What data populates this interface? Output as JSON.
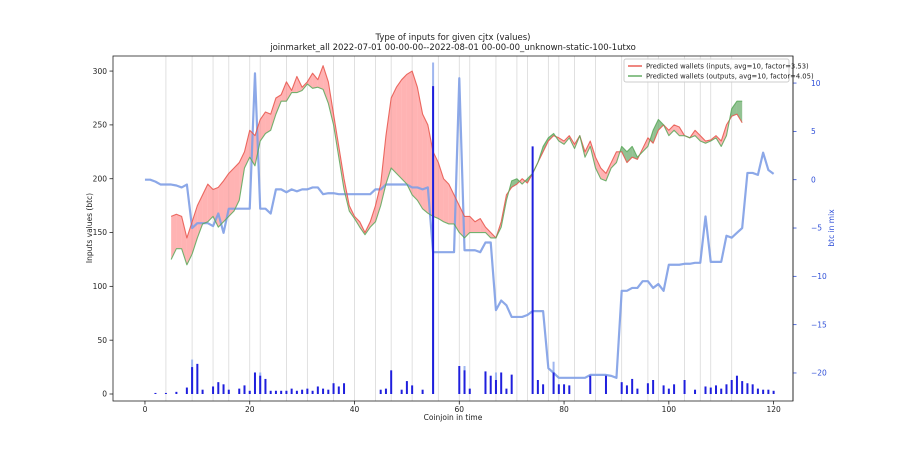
{
  "chart_data": {
    "type": "line",
    "title": "Type of inputs for given cjtx (values)",
    "subtitle": "joinmarket_all 2022-07-01 00-00-00--2022-08-01 00-00-00_unknown-static-100-1utxo",
    "xlabel": "Coinjoin in time",
    "ylabel": "Inputs values (btc)",
    "y2label": "btc in mix",
    "xlim": [
      -6.1,
      123.7
    ],
    "xticks": [
      0,
      20,
      40,
      60,
      80,
      100,
      120
    ],
    "ylim": [
      -6.5,
      314
    ],
    "yticks": [
      0,
      50,
      100,
      150,
      200,
      250,
      300
    ],
    "y2lim": [
      -22.9,
      12.8
    ],
    "y2ticks": [
      10,
      5,
      0,
      {
        "value": -5,
        "label": "−5"
      },
      {
        "value": -10,
        "label": "−10"
      },
      {
        "value": -15,
        "label": "−15"
      },
      {
        "value": -20,
        "label": "−20"
      }
    ],
    "legend": "upper right",
    "vlines": [
      4,
      9,
      13,
      16,
      20,
      22,
      27,
      31,
      36,
      40,
      44,
      47,
      51,
      56,
      60,
      62,
      67,
      71,
      73,
      77,
      79,
      82,
      86,
      91,
      96,
      98,
      103,
      106,
      108,
      112
    ],
    "series": [
      {
        "name": "Predicted wallets (inputs, avg=10, factor=3.53)",
        "color": "#e8534a",
        "fill_color": "#ff8080",
        "x": [
          5,
          6,
          7,
          8,
          9,
          10,
          11,
          12,
          13,
          14,
          15,
          16,
          17,
          18,
          19,
          20,
          21,
          22,
          23,
          24,
          25,
          26,
          27,
          28,
          29,
          30,
          31,
          32,
          33,
          34,
          35,
          36,
          37,
          38,
          39,
          40,
          41,
          42,
          43,
          44,
          45,
          46,
          47,
          48,
          49,
          50,
          51,
          52,
          53,
          54,
          55,
          56,
          57,
          58,
          59,
          60,
          61,
          62,
          63,
          64,
          65,
          66,
          67,
          68,
          69,
          70,
          71,
          72,
          73,
          74,
          75,
          76,
          77,
          78,
          79,
          80,
          81,
          82,
          83,
          84,
          85,
          86,
          87,
          88,
          89,
          90,
          91,
          92,
          93,
          94,
          95,
          96,
          97,
          98,
          99,
          100,
          101,
          102,
          103,
          104,
          105,
          106,
          107,
          108,
          109,
          110,
          111,
          112,
          113,
          114
        ],
        "values": [
          165,
          167,
          165,
          145,
          160,
          175,
          185,
          195,
          190,
          192,
          198,
          205,
          210,
          215,
          225,
          245,
          240,
          255,
          262,
          260,
          275,
          278,
          290,
          282,
          295,
          285,
          290,
          298,
          292,
          305,
          290,
          260,
          230,
          200,
          175,
          165,
          160,
          150,
          160,
          175,
          195,
          240,
          275,
          285,
          292,
          297,
          300,
          285,
          260,
          250,
          225,
          215,
          200,
          195,
          185,
          175,
          165,
          165,
          160,
          163,
          155,
          150,
          145,
          160,
          185,
          192,
          195,
          200,
          196,
          205,
          215,
          225,
          235,
          240,
          238,
          235,
          240,
          232,
          240,
          225,
          235,
          220,
          210,
          205,
          215,
          225,
          225,
          215,
          220,
          218,
          228,
          238,
          233,
          245,
          250,
          245,
          250,
          248,
          240,
          238,
          245,
          240,
          235,
          236,
          240,
          235,
          250,
          258,
          260,
          252
        ]
      },
      {
        "name": "Predicted wallets (outputs, avg=10, factor=4.05)",
        "color": "#5aa85a",
        "fill_color": "#4a9a4a",
        "x": [
          5,
          6,
          7,
          8,
          9,
          10,
          11,
          12,
          13,
          14,
          15,
          16,
          17,
          18,
          19,
          20,
          21,
          22,
          23,
          24,
          25,
          26,
          27,
          28,
          29,
          30,
          31,
          32,
          33,
          34,
          35,
          36,
          37,
          38,
          39,
          40,
          41,
          42,
          43,
          44,
          45,
          46,
          47,
          48,
          49,
          50,
          51,
          52,
          53,
          54,
          55,
          56,
          57,
          58,
          59,
          60,
          61,
          62,
          63,
          64,
          65,
          66,
          67,
          68,
          69,
          70,
          71,
          72,
          73,
          74,
          75,
          76,
          77,
          78,
          79,
          80,
          81,
          82,
          83,
          84,
          85,
          86,
          87,
          88,
          89,
          90,
          91,
          92,
          93,
          94,
          95,
          96,
          97,
          98,
          99,
          100,
          101,
          102,
          103,
          104,
          105,
          106,
          107,
          108,
          109,
          110,
          111,
          112,
          113,
          114
        ],
        "values": [
          125,
          135,
          135,
          120,
          130,
          145,
          158,
          160,
          165,
          155,
          160,
          165,
          170,
          180,
          210,
          220,
          212,
          235,
          242,
          245,
          260,
          272,
          272,
          280,
          280,
          282,
          288,
          284,
          285,
          283,
          270,
          250,
          220,
          190,
          170,
          163,
          155,
          148,
          155,
          160,
          175,
          195,
          210,
          205,
          200,
          195,
          185,
          180,
          172,
          168,
          165,
          163,
          160,
          158,
          158,
          150,
          145,
          150,
          150,
          150,
          150,
          145,
          145,
          155,
          180,
          198,
          200,
          195,
          200,
          205,
          215,
          230,
          238,
          242,
          235,
          232,
          238,
          228,
          240,
          220,
          230,
          210,
          200,
          198,
          210,
          215,
          230,
          225,
          230,
          220,
          225,
          230,
          245,
          255,
          250,
          240,
          245,
          240,
          240,
          238,
          240,
          235,
          233,
          235,
          238,
          230,
          240,
          265,
          272,
          272
        ]
      }
    ],
    "mix_line": {
      "axis": "y2",
      "color": "#7f9fe6",
      "x": [
        0,
        1,
        2,
        3,
        4,
        5,
        6,
        7,
        8,
        9,
        10,
        11,
        12,
        13,
        14,
        15,
        16,
        17,
        18,
        19,
        20,
        21,
        22,
        23,
        24,
        25,
        26,
        27,
        28,
        29,
        30,
        31,
        32,
        33,
        34,
        35,
        36,
        37,
        38,
        39,
        40,
        41,
        42,
        43,
        44,
        45,
        46,
        47,
        48,
        49,
        50,
        51,
        52,
        53,
        54,
        55,
        56,
        57,
        58,
        59,
        60,
        61,
        62,
        63,
        64,
        65,
        66,
        67,
        68,
        69,
        70,
        71,
        72,
        73,
        74,
        75,
        76,
        77,
        78,
        79,
        80,
        81,
        82,
        83,
        84,
        85,
        86,
        87,
        88,
        89,
        90,
        91,
        92,
        93,
        94,
        95,
        96,
        97,
        98,
        99,
        100,
        101,
        102,
        103,
        104,
        105,
        106,
        107,
        108,
        109,
        110,
        111,
        112,
        113,
        114,
        115,
        116,
        117,
        118,
        119,
        120
      ],
      "values": [
        0,
        0,
        -0.2,
        -0.5,
        -0.5,
        -0.5,
        -0.6,
        -0.8,
        -0.5,
        -5,
        -4.5,
        -4.5,
        -4.5,
        -4.8,
        -3.5,
        -5.5,
        -3,
        -3,
        -3,
        -3,
        -3,
        11,
        -3,
        -3,
        -3.5,
        -1,
        -1,
        -1.3,
        -1,
        -1.2,
        -1,
        -1,
        -0.8,
        -0.8,
        -1.5,
        -1.4,
        -1.4,
        -1.5,
        -1.5,
        -1.5,
        -1.5,
        -1.5,
        -1.5,
        -1.5,
        -1,
        -1,
        -0.5,
        -0.5,
        -0.5,
        -0.5,
        -0.5,
        -0.8,
        -0.8,
        -1,
        -0.8,
        -7.5,
        -7.5,
        -7.5,
        -7.5,
        -7.5,
        10.5,
        -7.3,
        -7.3,
        -7.3,
        -7.5,
        -6.5,
        -6.5,
        -13.5,
        -12.5,
        -13,
        -14.2,
        -14.2,
        -14.2,
        -14,
        -13.6,
        -13.6,
        -13.6,
        -19.5,
        -20,
        -20.5,
        -20.5,
        -20.5,
        -20.5,
        -20.5,
        -20.5,
        -20.2,
        -20.2,
        -20.2,
        -20.2,
        -20.3,
        -20.5,
        -11.5,
        -11.5,
        -11.2,
        -11.2,
        -10.5,
        -10.5,
        -11.2,
        -10.8,
        -11.5,
        -8.8,
        -8.8,
        -8.8,
        -8.7,
        -8.7,
        -8.6,
        -8.6,
        -3.8,
        -8.5,
        -8.5,
        -8.5,
        -5.8,
        -6,
        -5.5,
        -5,
        0.7,
        0.7,
        0.5,
        2.8,
        1,
        0.6
      ]
    },
    "light_bars": {
      "color": "#9fb6ef",
      "x": [
        9,
        22,
        55,
        61,
        67,
        78
      ],
      "values": [
        32,
        20,
        308,
        26,
        20,
        30
      ]
    },
    "bars": {
      "color": "#1f1fdd",
      "x": [
        2,
        4,
        6,
        8,
        9,
        10,
        11,
        13,
        14,
        15,
        16,
        18,
        19,
        20,
        21,
        22,
        23,
        24,
        25,
        26,
        27,
        28,
        29,
        30,
        31,
        32,
        33,
        34,
        35,
        36,
        37,
        38,
        45,
        46,
        47,
        49,
        50,
        51,
        53,
        55,
        60,
        61,
        62,
        65,
        66,
        67,
        68,
        69,
        70,
        74,
        75,
        76,
        78,
        79,
        80,
        81,
        85,
        88,
        91,
        92,
        93,
        94,
        96,
        97,
        99,
        100,
        101,
        103,
        105,
        107,
        108,
        109,
        110,
        111,
        112,
        113,
        114,
        115,
        116,
        117,
        118,
        119,
        120
      ],
      "values": [
        1,
        1,
        2,
        6,
        25,
        28,
        4,
        7,
        11,
        9,
        4,
        5,
        8,
        3,
        20,
        17,
        14,
        3,
        3,
        3,
        3,
        5,
        3,
        4,
        5,
        3,
        7,
        5,
        4,
        10,
        7,
        10,
        4,
        5,
        22,
        4,
        12,
        8,
        4,
        286,
        26,
        22,
        5,
        21,
        17,
        13,
        20,
        5,
        18,
        230,
        13,
        9,
        20,
        9,
        9,
        8,
        17,
        17,
        11,
        8,
        14,
        5,
        10,
        13,
        8,
        5,
        9,
        13,
        4,
        7,
        6,
        8,
        5,
        9,
        13,
        17,
        12,
        10,
        9,
        5,
        4,
        4,
        3
      ]
    }
  }
}
